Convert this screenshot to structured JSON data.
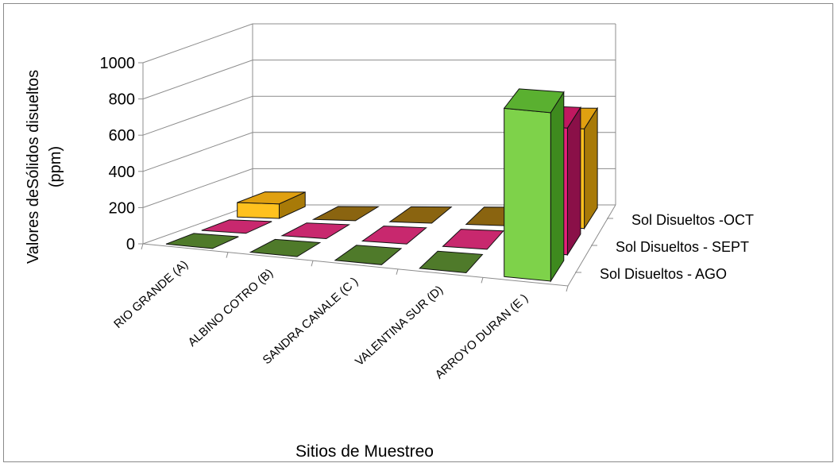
{
  "chart_data": {
    "type": "bar",
    "subtype": "3d-column",
    "categories": [
      "RIO GRANDE (A)",
      "ALBINO COTRO (B)",
      "SANDRA CANALE (C )",
      "VALENTINA SUR (D)",
      "ARROYO DURAN (E )"
    ],
    "series": [
      {
        "name": "Sol Disueltos - AGO",
        "values": [
          0,
          0,
          0,
          0,
          930
        ],
        "color": "#7ED24A",
        "side_color": "#3E8A1E",
        "top_color": "#5AB030",
        "flat_color": "#4F7A2A"
      },
      {
        "name": "Sol Disueltos - SEPT",
        "values": [
          0,
          0,
          0,
          0,
          700
        ],
        "color": "#E8207A",
        "side_color": "#8A1048",
        "top_color": "#C01860",
        "flat_color": "#C8286E"
      },
      {
        "name": "Sol Disueltos -OCT",
        "values": [
          80,
          0,
          0,
          0,
          550
        ],
        "color": "#FFC11E",
        "side_color": "#A87A08",
        "top_color": "#E0A010",
        "flat_color": "#8A6410"
      }
    ],
    "xlabel": "Sitios de Muestreo",
    "ylabel_line1": "Valores deSólidos disueltos",
    "ylabel_line2": "(ppm)",
    "yticks": [
      "0",
      "200",
      "400",
      "600",
      "800",
      "1000"
    ],
    "ylim": [
      0,
      1000
    ],
    "grid": true,
    "legend": "depth-axis"
  }
}
